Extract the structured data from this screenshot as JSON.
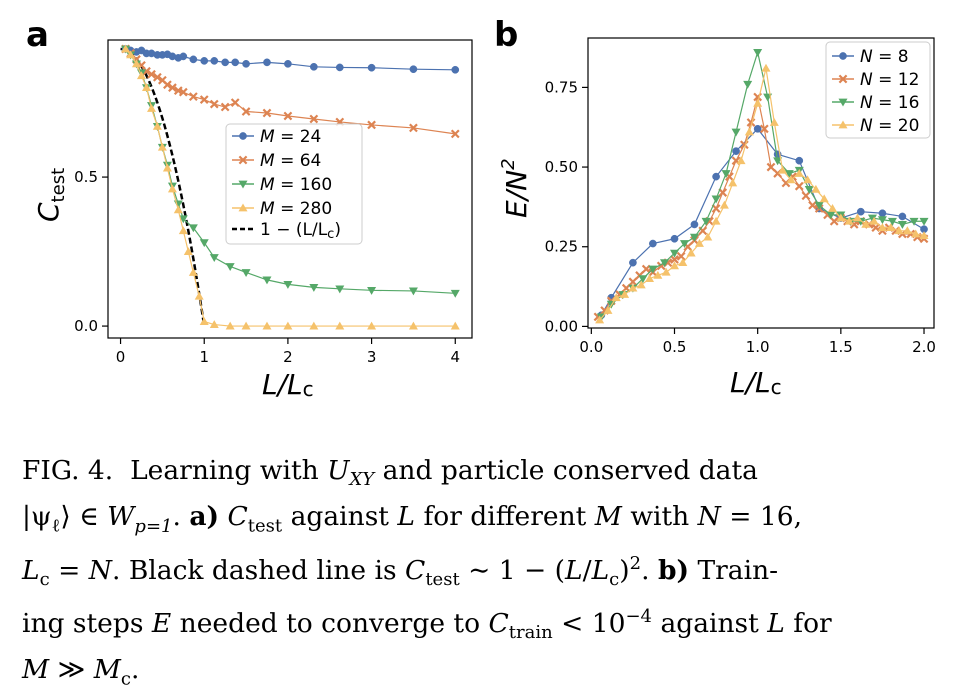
{
  "chart_data": [
    {
      "panel": "a",
      "type": "line",
      "xlabel": "L/L",
      "xlabel_sub": "c",
      "ylabel": "C",
      "ylabel_sub": "test",
      "xlim": [
        -0.15,
        4.2
      ],
      "ylim": [
        -0.04,
        0.96
      ],
      "xticks": [
        0,
        1,
        2,
        3,
        4
      ],
      "xtick_labels": [
        "0",
        "1",
        "2",
        "3",
        "4"
      ],
      "yticks": [
        0.0,
        0.5
      ],
      "ytick_labels": [
        "0.0",
        "0.5"
      ],
      "grid": false,
      "legend_position": "center",
      "series": [
        {
          "name": "M = 24",
          "label_var": "M",
          "label_val": "24",
          "color": "#4c72b0",
          "marker": "circle",
          "x": [
            0.06,
            0.12,
            0.19,
            0.25,
            0.31,
            0.37,
            0.44,
            0.5,
            0.56,
            0.62,
            0.69,
            0.75,
            0.87,
            1.0,
            1.12,
            1.25,
            1.37,
            1.5,
            1.75,
            2.0,
            2.31,
            2.62,
            3.0,
            3.5,
            4.0
          ],
          "y": [
            0.93,
            0.925,
            0.92,
            0.925,
            0.915,
            0.915,
            0.91,
            0.91,
            0.912,
            0.905,
            0.9,
            0.905,
            0.895,
            0.89,
            0.89,
            0.885,
            0.885,
            0.88,
            0.885,
            0.88,
            0.87,
            0.868,
            0.867,
            0.862,
            0.86
          ]
        },
        {
          "name": "M = 64",
          "label_var": "M",
          "label_val": "64",
          "color": "#dd8452",
          "marker": "x",
          "x": [
            0.06,
            0.12,
            0.19,
            0.25,
            0.31,
            0.37,
            0.44,
            0.5,
            0.56,
            0.62,
            0.69,
            0.75,
            0.87,
            1.0,
            1.12,
            1.25,
            1.37,
            1.5,
            1.75,
            2.0,
            2.31,
            2.62,
            3.0,
            3.5,
            4.0
          ],
          "y": [
            0.93,
            0.915,
            0.895,
            0.875,
            0.855,
            0.845,
            0.835,
            0.825,
            0.81,
            0.8,
            0.79,
            0.785,
            0.77,
            0.76,
            0.745,
            0.735,
            0.75,
            0.72,
            0.715,
            0.705,
            0.695,
            0.685,
            0.675,
            0.665,
            0.645
          ]
        },
        {
          "name": "M = 160",
          "label_var": "M",
          "label_val": "160",
          "color": "#55a868",
          "marker": "triangle-down",
          "x": [
            0.06,
            0.12,
            0.19,
            0.25,
            0.31,
            0.37,
            0.44,
            0.5,
            0.56,
            0.62,
            0.69,
            0.75,
            0.87,
            1.0,
            1.12,
            1.31,
            1.5,
            1.75,
            2.0,
            2.31,
            2.62,
            3.0,
            3.5,
            4.0
          ],
          "y": [
            0.93,
            0.91,
            0.88,
            0.85,
            0.8,
            0.74,
            0.67,
            0.6,
            0.54,
            0.47,
            0.41,
            0.36,
            0.33,
            0.28,
            0.23,
            0.2,
            0.18,
            0.155,
            0.14,
            0.13,
            0.125,
            0.12,
            0.118,
            0.11
          ]
        },
        {
          "name": "M = 280",
          "label_var": "M",
          "label_val": "280",
          "color": "#f5c26b",
          "marker": "triangle-up",
          "x": [
            0.06,
            0.12,
            0.19,
            0.25,
            0.31,
            0.37,
            0.44,
            0.5,
            0.56,
            0.62,
            0.69,
            0.75,
            0.81,
            0.87,
            0.94,
            1.0,
            1.12,
            1.31,
            1.5,
            1.75,
            2.0,
            2.31,
            2.62,
            3.0,
            3.5,
            4.0
          ],
          "y": [
            0.93,
            0.91,
            0.88,
            0.84,
            0.8,
            0.73,
            0.67,
            0.6,
            0.53,
            0.46,
            0.39,
            0.32,
            0.25,
            0.18,
            0.1,
            0.015,
            0.005,
            0.0,
            0.0,
            0.0,
            0.0,
            0.0,
            0.0,
            0.0,
            0.0,
            0.0
          ]
        }
      ],
      "reference_curve": {
        "name": "1 − (L/L",
        "name_sub": "c",
        "name_end": ")",
        "color": "#000000",
        "style": "dashed",
        "x_max": 1.0,
        "y0": 0.93
      }
    },
    {
      "panel": "b",
      "type": "line",
      "xlabel": "L/L",
      "xlabel_sub": "c",
      "ylabel": "E/N",
      "ylabel_sup": "2",
      "xlim": [
        -0.02,
        2.06
      ],
      "ylim": [
        -0.005,
        0.905
      ],
      "xticks": [
        0.0,
        0.5,
        1.0,
        1.5,
        2.0
      ],
      "xtick_labels": [
        "0.0",
        "0.5",
        "1.0",
        "1.5",
        "2.0"
      ],
      "yticks": [
        0.0,
        0.25,
        0.5,
        0.75
      ],
      "ytick_labels": [
        "0.00",
        "0.25",
        "0.50",
        "0.75"
      ],
      "grid": false,
      "legend_position": "top-right",
      "series": [
        {
          "name": "N = 8",
          "label_var": "N",
          "label_val": "8",
          "color": "#4c72b0",
          "marker": "circle",
          "x": [
            0.06,
            0.12,
            0.25,
            0.37,
            0.5,
            0.62,
            0.75,
            0.87,
            1.0,
            1.12,
            1.25,
            1.37,
            1.5,
            1.62,
            1.75,
            1.87,
            2.0
          ],
          "y": [
            0.035,
            0.09,
            0.2,
            0.26,
            0.275,
            0.32,
            0.47,
            0.55,
            0.62,
            0.54,
            0.52,
            0.37,
            0.34,
            0.36,
            0.355,
            0.345,
            0.305
          ]
        },
        {
          "name": "N = 12",
          "label_var": "N",
          "label_val": "12",
          "color": "#dd8452",
          "marker": "x",
          "x": [
            0.04,
            0.08,
            0.12,
            0.17,
            0.21,
            0.25,
            0.29,
            0.33,
            0.37,
            0.42,
            0.46,
            0.5,
            0.54,
            0.58,
            0.62,
            0.67,
            0.71,
            0.75,
            0.79,
            0.83,
            0.87,
            0.92,
            0.96,
            1.0,
            1.04,
            1.08,
            1.12,
            1.17,
            1.21,
            1.25,
            1.29,
            1.33,
            1.37,
            1.42,
            1.46,
            1.5,
            1.54,
            1.58,
            1.62,
            1.67,
            1.71,
            1.75,
            1.79,
            1.83,
            1.87,
            1.92,
            1.96,
            2.0
          ],
          "y": [
            0.03,
            0.05,
            0.08,
            0.1,
            0.12,
            0.14,
            0.16,
            0.18,
            0.17,
            0.19,
            0.2,
            0.21,
            0.22,
            0.25,
            0.27,
            0.3,
            0.33,
            0.37,
            0.42,
            0.47,
            0.52,
            0.57,
            0.64,
            0.72,
            0.62,
            0.5,
            0.48,
            0.45,
            0.47,
            0.44,
            0.41,
            0.38,
            0.37,
            0.35,
            0.33,
            0.34,
            0.33,
            0.32,
            0.33,
            0.32,
            0.31,
            0.3,
            0.31,
            0.3,
            0.29,
            0.29,
            0.28,
            0.275
          ]
        },
        {
          "name": "N = 16",
          "label_var": "N",
          "label_val": "16",
          "color": "#55a868",
          "marker": "triangle-down",
          "x": [
            0.06,
            0.12,
            0.19,
            0.25,
            0.31,
            0.37,
            0.44,
            0.5,
            0.56,
            0.62,
            0.69,
            0.75,
            0.81,
            0.87,
            0.94,
            1.0,
            1.06,
            1.12,
            1.19,
            1.25,
            1.31,
            1.37,
            1.44,
            1.5,
            1.56,
            1.62,
            1.69,
            1.75,
            1.81,
            1.87,
            1.94,
            2.0
          ],
          "y": [
            0.03,
            0.07,
            0.1,
            0.12,
            0.15,
            0.18,
            0.2,
            0.23,
            0.26,
            0.28,
            0.33,
            0.4,
            0.48,
            0.61,
            0.76,
            0.86,
            0.72,
            0.52,
            0.48,
            0.49,
            0.43,
            0.38,
            0.35,
            0.35,
            0.33,
            0.33,
            0.34,
            0.335,
            0.33,
            0.32,
            0.33,
            0.33
          ]
        },
        {
          "name": "N = 20",
          "label_var": "N",
          "label_val": "20",
          "color": "#f5c26b",
          "marker": "triangle-up",
          "x": [
            0.05,
            0.1,
            0.15,
            0.2,
            0.25,
            0.3,
            0.35,
            0.4,
            0.45,
            0.5,
            0.55,
            0.6,
            0.65,
            0.7,
            0.75,
            0.8,
            0.85,
            0.9,
            0.95,
            1.0,
            1.05,
            1.1,
            1.15,
            1.2,
            1.25,
            1.3,
            1.35,
            1.4,
            1.45,
            1.5,
            1.55,
            1.6,
            1.65,
            1.7,
            1.75,
            1.8,
            1.85,
            1.9,
            1.95,
            2.0
          ],
          "y": [
            0.02,
            0.05,
            0.09,
            0.1,
            0.12,
            0.13,
            0.15,
            0.16,
            0.17,
            0.19,
            0.2,
            0.23,
            0.26,
            0.28,
            0.33,
            0.38,
            0.45,
            0.52,
            0.61,
            0.7,
            0.81,
            0.64,
            0.49,
            0.46,
            0.48,
            0.46,
            0.43,
            0.4,
            0.37,
            0.34,
            0.33,
            0.34,
            0.32,
            0.33,
            0.31,
            0.31,
            0.3,
            0.3,
            0.29,
            0.285
          ]
        }
      ]
    }
  ],
  "caption": {
    "fig": "FIG. 4.",
    "line1": "Learning with",
    "uxy_sym": "U",
    "uxy_sub": "XY",
    "line1_end": "and particle conserved data",
    "l2_ket": "|ψ",
    "l2_ket_sub": "ℓ",
    "l2_ket_end": "⟩ ∈",
    "l2_W": "W",
    "l2_W_sub": "p=1",
    "l2_dot": ".",
    "l2_a": "a)",
    "l2_C": "C",
    "l2_C_sub": "test",
    "l2_rest": "against",
    "l2_L": "L",
    "l2_rest2": "for different",
    "l2_M": "M",
    "l2_rest3": "with",
    "l2_N": "N",
    "l2_eq": "= 16,",
    "l3_L": "L",
    "l3_L_sub": "c",
    "l3_eq": "=",
    "l3_N": "N",
    "l3_text": ". Black dashed line is",
    "l3_C": "C",
    "l3_C_sub": "test",
    "l3_sim": "∼ 1 − (",
    "l3_L2": "L",
    "l3_slash": "/",
    "l3_Lc": "L",
    "l3_Lc_sub": "c",
    "l3_close": ")",
    "l3_sup": "2",
    "l3_dot": ".",
    "l3_b": "b)",
    "l3_end": "Train-",
    "l4_start": "ing steps",
    "l4_E": "E",
    "l4_text": "needed to converge to",
    "l4_C": "C",
    "l4_C_sub": "train",
    "l4_lt": "< 10",
    "l4_sup": "−4",
    "l4_text2": "against",
    "l4_L": "L",
    "l4_for": "for",
    "l5_M": "M",
    "l5_gg": "≫",
    "l5_Mc": "M",
    "l5_Mc_sub": "c",
    "l5_dot": "."
  }
}
